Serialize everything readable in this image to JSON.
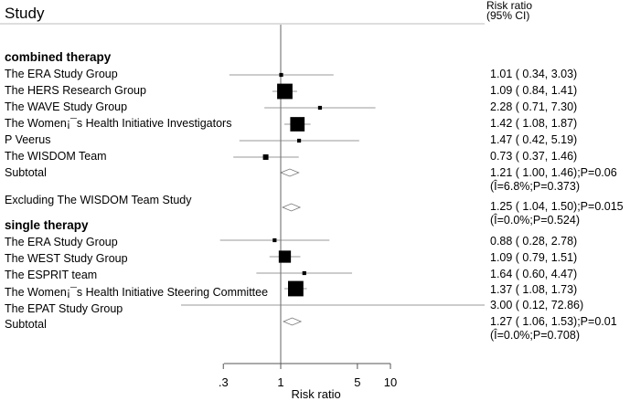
{
  "chart_data": {
    "type": "forest",
    "header": {
      "study": "Study",
      "effect": "Risk ratio",
      "ci": "(95% CI)"
    },
    "xlabel": "Risk ratio",
    "xscale": "log",
    "xlim": [
      0.2,
      14
    ],
    "xticks": [
      {
        "value": 0.3,
        "label": ".3"
      },
      {
        "value": 1,
        "label": "1"
      },
      {
        "value": 5,
        "label": "5"
      },
      {
        "value": 10,
        "label": "10"
      }
    ],
    "null_line": 1,
    "sections": [
      {
        "title": "combined therapy",
        "studies": [
          {
            "label": "The ERA Study Group",
            "rr": 1.01,
            "lo": 0.34,
            "hi": 3.03,
            "weight": 1,
            "text": "1.01 ( 0.34, 3.03)"
          },
          {
            "label": "The HERS Research Group",
            "rr": 1.09,
            "lo": 0.84,
            "hi": 1.41,
            "weight": 16,
            "text": "1.09 ( 0.84, 1.41)"
          },
          {
            "label": "The WAVE Study Group",
            "rr": 2.28,
            "lo": 0.71,
            "hi": 7.3,
            "weight": 1,
            "text": "2.28 ( 0.71, 7.30)"
          },
          {
            "label": "The Women¡¯s Health Initiative Investigators",
            "rr": 1.42,
            "lo": 1.08,
            "hi": 1.87,
            "weight": 14,
            "text": "1.42 ( 1.08, 1.87)"
          },
          {
            "label": "P Veerus",
            "rr": 1.47,
            "lo": 0.42,
            "hi": 5.19,
            "weight": 1,
            "text": "1.47 ( 0.42, 5.19)"
          },
          {
            "label": "The WISDOM Team",
            "rr": 0.73,
            "lo": 0.37,
            "hi": 1.46,
            "weight": 2,
            "text": "0.73 ( 0.37, 1.46)"
          }
        ],
        "subtotals": [
          {
            "label": "Subtotal",
            "rr": 1.21,
            "lo": 1.0,
            "hi": 1.46,
            "text": "1.21 ( 1.00, 1.46);P=0.06",
            "het": "(Î=6.8%;P=0.373)"
          },
          {
            "label": "Excluding The WISDOM Team Study",
            "rr": 1.25,
            "lo": 1.04,
            "hi": 1.5,
            "text": "1.25 ( 1.04, 1.50);P=0.015",
            "het": "(Î=0.0%;P=0.524)"
          }
        ]
      },
      {
        "title": "single therapy",
        "studies": [
          {
            "label": "The ERA Study Group",
            "rr": 0.88,
            "lo": 0.28,
            "hi": 2.78,
            "weight": 1,
            "text": "0.88 ( 0.28, 2.78)"
          },
          {
            "label": "The WEST Study Group",
            "rr": 1.09,
            "lo": 0.79,
            "hi": 1.51,
            "weight": 10,
            "text": "1.09 ( 0.79, 1.51)"
          },
          {
            "label": "The ESPRIT team",
            "rr": 1.64,
            "lo": 0.6,
            "hi": 4.47,
            "weight": 1,
            "text": "1.64 ( 0.60, 4.47)"
          },
          {
            "label": "The Women¡¯s Health Initiative Steering Committee",
            "rr": 1.37,
            "lo": 1.08,
            "hi": 1.73,
            "weight": 16,
            "text": "1.37 ( 1.08, 1.73)"
          },
          {
            "label": "The EPAT Study Group",
            "rr": 3.0,
            "lo": 0.12,
            "hi": 72.86,
            "weight": 0,
            "text": "3.00 ( 0.12, 72.86)"
          }
        ],
        "subtotals": [
          {
            "label": "Subtotal",
            "rr": 1.27,
            "lo": 1.06,
            "hi": 1.53,
            "text": "1.27 ( 1.06, 1.53);P=0.01",
            "het": "(Î=0.0%;P=0.708)"
          }
        ]
      }
    ]
  }
}
